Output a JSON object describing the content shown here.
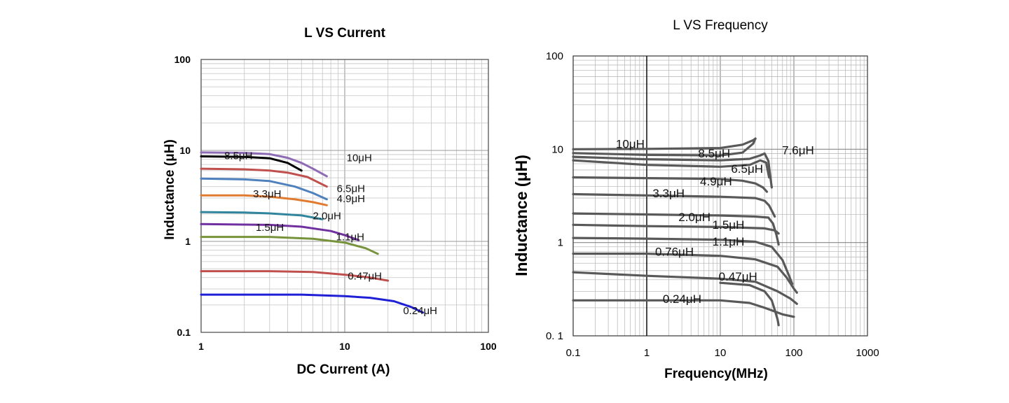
{
  "chart_data": [
    {
      "type": "line",
      "title": "L VS Current",
      "xlabel": "DC Current (A)",
      "ylabel": "Inductance (μH)",
      "xscale": "log",
      "yscale": "log",
      "xlim": [
        1,
        100
      ],
      "ylim": [
        0.1,
        100
      ],
      "x_ticks": [
        "1",
        "10",
        "100"
      ],
      "y_ticks": [
        "0.1",
        "1",
        "10",
        "100"
      ],
      "grid": true,
      "series": [
        {
          "name": "10μH",
          "color": "#8e6bb5",
          "label_at": [
            10.3,
            7.6
          ],
          "points": [
            [
              1,
              9.5
            ],
            [
              2,
              9.4
            ],
            [
              3,
              9.1
            ],
            [
              4,
              8.3
            ],
            [
              5,
              7.3
            ],
            [
              6,
              6.3
            ],
            [
              7.5,
              5.2
            ]
          ]
        },
        {
          "name": "8.5μH",
          "color": "#000000",
          "label_at": [
            1.45,
            8.0
          ],
          "points": [
            [
              1,
              8.6
            ],
            [
              2,
              8.5
            ],
            [
              3,
              8.2
            ],
            [
              4,
              7.3
            ],
            [
              5,
              6.0
            ]
          ]
        },
        {
          "name": "6.5μH",
          "color": "#c0504d",
          "label_at": [
            8.8,
            3.5
          ],
          "points": [
            [
              1,
              6.3
            ],
            [
              2,
              6.2
            ],
            [
              3,
              6.0
            ],
            [
              4,
              5.7
            ],
            [
              5.5,
              5.1
            ],
            [
              7.5,
              4.0
            ]
          ]
        },
        {
          "name": "4.9μH",
          "color": "#4f81bd",
          "label_at": [
            8.8,
            2.7
          ],
          "points": [
            [
              1,
              4.9
            ],
            [
              2,
              4.8
            ],
            [
              3,
              4.6
            ],
            [
              4.5,
              4.0
            ],
            [
              6,
              3.4
            ],
            [
              7.5,
              2.9
            ]
          ]
        },
        {
          "name": "3.3μH",
          "color": "#e07b2f",
          "label_at": [
            2.3,
            3.05
          ],
          "points": [
            [
              1,
              3.2
            ],
            [
              2,
              3.2
            ],
            [
              3,
              3.1
            ],
            [
              4.5,
              2.9
            ],
            [
              6,
              2.7
            ],
            [
              7.5,
              2.5
            ]
          ]
        },
        {
          "name": "2.0μH",
          "color": "#31859c",
          "label_at": [
            6.0,
            1.75
          ],
          "points": [
            [
              1,
              2.1
            ],
            [
              2,
              2.08
            ],
            [
              3,
              2.03
            ],
            [
              5,
              1.93
            ],
            [
              7,
              1.75
            ]
          ]
        },
        {
          "name": "1.5μH",
          "color": "#7030a0",
          "label_at": [
            2.4,
            1.3
          ],
          "points": [
            [
              1,
              1.55
            ],
            [
              2,
              1.53
            ],
            [
              3,
              1.52
            ],
            [
              5,
              1.45
            ],
            [
              8,
              1.3
            ],
            [
              10,
              1.17
            ],
            [
              12.5,
              1.03
            ]
          ]
        },
        {
          "name": "1.1μH",
          "color": "#77933c",
          "label_at": [
            8.7,
            1.03
          ],
          "points": [
            [
              1,
              1.12
            ],
            [
              2,
              1.12
            ],
            [
              3,
              1.12
            ],
            [
              6,
              1.07
            ],
            [
              10,
              0.97
            ],
            [
              14,
              0.84
            ],
            [
              17,
              0.73
            ]
          ]
        },
        {
          "name": "0.47μH",
          "color": "#c0504d",
          "label_at": [
            10.5,
            0.38
          ],
          "points": [
            [
              1,
              0.47
            ],
            [
              3,
              0.47
            ],
            [
              6,
              0.46
            ],
            [
              10,
              0.43
            ],
            [
              15,
              0.4
            ],
            [
              20,
              0.37
            ]
          ]
        },
        {
          "name": "0.24μH",
          "color": "#1f1fd6",
          "label_at": [
            25.5,
            0.158
          ],
          "points": [
            [
              1,
              0.26
            ],
            [
              5,
              0.26
            ],
            [
              10,
              0.25
            ],
            [
              15,
              0.24
            ],
            [
              22,
              0.22
            ],
            [
              29,
              0.19
            ],
            [
              35,
              0.165
            ]
          ]
        }
      ]
    },
    {
      "type": "line",
      "title": "L VS Frequency",
      "xlabel": "Frequency(MHz)",
      "ylabel": "Inductance (μH)",
      "xscale": "log",
      "yscale": "log",
      "xlim": [
        0.1,
        1000
      ],
      "ylim": [
        0.1,
        100
      ],
      "x_ticks": [
        "0.1",
        "1",
        "10",
        "100",
        "1000"
      ],
      "y_ticks": [
        "0. 1",
        "1",
        "10",
        "100"
      ],
      "grid": true,
      "series": [
        {
          "name": "10μH",
          "color": "#595959",
          "label_at": [
            0.38,
            10.3
          ],
          "points": [
            [
              0.1,
              10
            ],
            [
              1,
              10.1
            ],
            [
              10,
              10.3
            ],
            [
              20,
              11.2
            ],
            [
              28,
              12.5
            ],
            [
              30,
              13
            ]
          ]
        },
        {
          "name": "8.5μH",
          "color": "#595959",
          "label_at": [
            5.0,
            8.2
          ],
          "points": [
            [
              0.1,
              9.1
            ],
            [
              1,
              8.7
            ],
            [
              10,
              8.6
            ],
            [
              20,
              9.2
            ],
            [
              28,
              11.5
            ],
            [
              30,
              13
            ]
          ]
        },
        {
          "name": "7.6μH",
          "color": "#595959",
          "label_at": [
            69,
            8.8
          ],
          "points": [
            [
              0.1,
              8.3
            ],
            [
              1,
              7.8
            ],
            [
              10,
              7.6
            ],
            [
              25,
              7.9
            ],
            [
              35,
              8.6
            ],
            [
              40,
              9.0
            ],
            [
              45,
              7.5
            ],
            [
              48,
              5.0
            ],
            [
              50,
              3.9
            ]
          ]
        },
        {
          "name": "6.5μH",
          "color": "#595959",
          "label_at": [
            14,
            5.6
          ],
          "points": [
            [
              0.1,
              7.6
            ],
            [
              1,
              6.8
            ],
            [
              10,
              6.5
            ],
            [
              25,
              6.8
            ],
            [
              35,
              7.6
            ],
            [
              42,
              7.2
            ],
            [
              46,
              5.0
            ]
          ]
        },
        {
          "name": "4.9μH",
          "color": "#595959",
          "label_at": [
            5.3,
            4.1
          ],
          "points": [
            [
              0.1,
              5.0
            ],
            [
              1,
              4.9
            ],
            [
              10,
              4.8
            ],
            [
              20,
              4.6
            ],
            [
              30,
              4.3
            ],
            [
              38,
              3.9
            ],
            [
              43,
              3.5
            ]
          ]
        },
        {
          "name": "3.3μH",
          "color": "#595959",
          "label_at": [
            1.2,
            3.05
          ],
          "points": [
            [
              0.1,
              3.3
            ],
            [
              1,
              3.2
            ],
            [
              10,
              3.1
            ],
            [
              30,
              3.0
            ],
            [
              40,
              2.8
            ],
            [
              46,
              2.5
            ],
            [
              50,
              2.2
            ],
            [
              55,
              1.9
            ]
          ]
        },
        {
          "name": "2.0μH",
          "color": "#595959",
          "label_at": [
            2.7,
            1.7
          ],
          "points": [
            [
              0.1,
              2.05
            ],
            [
              1,
              2.0
            ],
            [
              10,
              1.95
            ],
            [
              30,
              1.9
            ],
            [
              45,
              1.85
            ],
            [
              52,
              1.6
            ],
            [
              58,
              1.2
            ],
            [
              62,
              0.95
            ]
          ]
        },
        {
          "name": "1.5μH",
          "color": "#595959",
          "label_at": [
            7.8,
            1.4
          ],
          "points": [
            [
              0.1,
              1.55
            ],
            [
              1,
              1.5
            ],
            [
              10,
              1.47
            ],
            [
              40,
              1.42
            ],
            [
              55,
              1.35
            ],
            [
              62,
              1.25
            ]
          ]
        },
        {
          "name": "1.1μH",
          "color": "#595959",
          "label_at": [
            7.8,
            0.93
          ],
          "points": [
            [
              0.1,
              1.12
            ],
            [
              1,
              1.1
            ],
            [
              10,
              1.07
            ],
            [
              30,
              1.02
            ],
            [
              50,
              0.9
            ],
            [
              70,
              0.65
            ],
            [
              85,
              0.45
            ],
            [
              95,
              0.36
            ]
          ]
        },
        {
          "name": "0.76μH",
          "color": "#595959",
          "label_at": [
            1.3,
            0.72
          ],
          "points": [
            [
              0.1,
              0.76
            ],
            [
              1,
              0.76
            ],
            [
              10,
              0.72
            ],
            [
              30,
              0.66
            ],
            [
              60,
              0.55
            ],
            [
              80,
              0.42
            ],
            [
              100,
              0.32
            ],
            [
              110,
              0.29
            ]
          ]
        },
        {
          "name": "0.47μH",
          "color": "#595959",
          "label_at": [
            9.5,
            0.39
          ],
          "points": [
            [
              0.1,
              0.48
            ],
            [
              1,
              0.44
            ],
            [
              10,
              0.41
            ],
            [
              30,
              0.38
            ],
            [
              60,
              0.3
            ],
            [
              90,
              0.25
            ],
            [
              110,
              0.22
            ]
          ]
        },
        {
          "name": "0.24μH",
          "color": "#595959",
          "label_at": [
            1.65,
            0.225
          ],
          "points": [
            [
              0.1,
              0.24
            ],
            [
              1,
              0.24
            ],
            [
              10,
              0.24
            ],
            [
              25,
              0.225
            ],
            [
              40,
              0.2
            ],
            [
              70,
              0.17
            ],
            [
              100,
              0.16
            ]
          ]
        },
        {
          "name": "",
          "color": "#595959",
          "points": [
            [
              10,
              0.37
            ],
            [
              25,
              0.35
            ],
            [
              40,
              0.3
            ],
            [
              50,
              0.24
            ],
            [
              55,
              0.19
            ],
            [
              60,
              0.15
            ],
            [
              62,
              0.13
            ]
          ]
        }
      ]
    }
  ]
}
